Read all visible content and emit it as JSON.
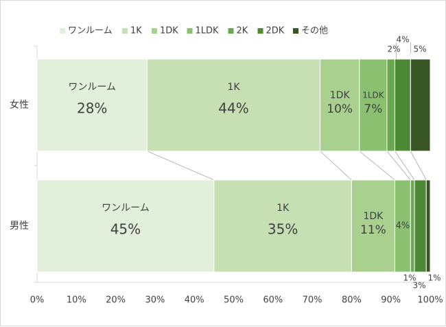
{
  "chart_data": {
    "type": "bar",
    "orientation": "horizontal",
    "stacked": true,
    "normalized": true,
    "categories": [
      "女性",
      "男性"
    ],
    "series": [
      {
        "name": "ワンルーム",
        "values": [
          28,
          45
        ],
        "color": "#e2efda"
      },
      {
        "name": "1K",
        "values": [
          44,
          35
        ],
        "color": "#c6e0b4"
      },
      {
        "name": "1DK",
        "values": [
          10,
          11
        ],
        "color": "#a9d08e"
      },
      {
        "name": "1LDK",
        "values": [
          7,
          4
        ],
        "color": "#8bc071"
      },
      {
        "name": "2K",
        "values": [
          2,
          1
        ],
        "color": "#6aa84f"
      },
      {
        "name": "2DK",
        "values": [
          4,
          3
        ],
        "color": "#4e8a35"
      },
      {
        "name": "その他",
        "values": [
          5,
          1
        ],
        "color": "#375623"
      }
    ],
    "segment_labels": [
      [
        {
          "name": "ワンルーム",
          "value": "28%"
        },
        {
          "name": "1K",
          "value": "44%"
        },
        {
          "name": "1DK",
          "value": "10%"
        },
        {
          "name": "1LDK",
          "value": "7%"
        },
        {
          "name": "",
          "value": "2%"
        },
        {
          "name": "",
          "value": "4%"
        },
        {
          "name": "",
          "value": "5%"
        }
      ],
      [
        {
          "name": "ワンルーム",
          "value": "45%"
        },
        {
          "name": "1K",
          "value": "35%"
        },
        {
          "name": "1DK",
          "value": "11%"
        },
        {
          "name": "",
          "value": "4%"
        },
        {
          "name": "",
          "value": "1%"
        },
        {
          "name": "",
          "value": "3%"
        },
        {
          "name": "",
          "value": "1%"
        }
      ]
    ],
    "xlim": [
      0,
      100
    ],
    "xticks": [
      "0%",
      "10%",
      "20%",
      "30%",
      "40%",
      "50%",
      "60%",
      "70%",
      "80%",
      "90%",
      "100%"
    ],
    "legend": "top",
    "series_lines": true
  }
}
